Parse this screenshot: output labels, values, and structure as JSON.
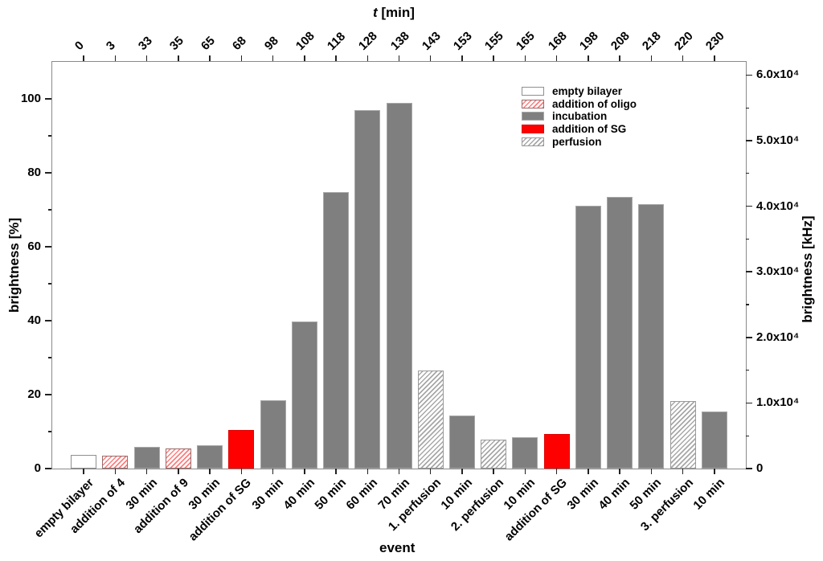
{
  "figure": {
    "top_axis_title": {
      "italic": "t",
      "rest": " [min]"
    },
    "bottom_axis_title": "event",
    "left_axis_title": "brightness [%]",
    "right_axis_title": "brightness [kHz]"
  },
  "legend": {
    "items": [
      {
        "label": "empty bilayer",
        "type": "empty"
      },
      {
        "label": "addition of oligo",
        "type": "oligo"
      },
      {
        "label": "incubation",
        "type": "incubation"
      },
      {
        "label": "addition of SG",
        "type": "sg"
      },
      {
        "label": "perfusion",
        "type": "perfusion"
      }
    ]
  },
  "chart_data": {
    "type": "bar",
    "title": "",
    "xlabel": "event",
    "ylabel_left": "brightness [%]",
    "ylabel_right": "brightness [kHz]",
    "xlabel_top": "t [min]",
    "categories": [
      "empty bilayer",
      "addition of 4",
      "30 min",
      "addition of 9",
      "30 min",
      "addition of SG",
      "30 min",
      "40 min",
      "50 min",
      "60 min",
      "70 min",
      "1. perfusion",
      "10 min",
      "2. perfusion",
      "10 min",
      "addition of SG",
      "30 min",
      "40 min",
      "50 min",
      "3. perfusion",
      "10 min"
    ],
    "t_min": [
      0,
      3,
      33,
      35,
      65,
      68,
      98,
      108,
      118,
      128,
      138,
      143,
      153,
      155,
      165,
      168,
      198,
      208,
      218,
      220,
      230
    ],
    "values_percent": [
      3.7,
      3.4,
      5.8,
      5.4,
      6.2,
      10.4,
      18.4,
      39.7,
      74.8,
      97.0,
      99.0,
      26.6,
      14.3,
      7.8,
      8.5,
      9.4,
      71.1,
      73.5,
      71.5,
      18.3,
      15.5
    ],
    "values_khz_approx": [
      2100,
      1900,
      3300,
      3000,
      3500,
      5900,
      10400,
      22400,
      42200,
      54700,
      55800,
      15000,
      8100,
      4400,
      4800,
      5300,
      40100,
      41400,
      40300,
      10300,
      8700
    ],
    "bar_types": [
      "empty",
      "oligo",
      "incubation",
      "oligo",
      "incubation",
      "sg",
      "incubation",
      "incubation",
      "incubation",
      "incubation",
      "incubation",
      "perfusion",
      "incubation",
      "perfusion",
      "incubation",
      "sg",
      "incubation",
      "incubation",
      "incubation",
      "perfusion",
      "incubation"
    ],
    "axes": {
      "left": {
        "majors": [
          0,
          20,
          40,
          60,
          80,
          100
        ],
        "minors": [
          10,
          30,
          50,
          70,
          90
        ],
        "max": 110
      },
      "right": {
        "majors_khz": [
          0,
          10000,
          20000,
          30000,
          40000,
          50000,
          60000
        ],
        "labels": [
          "0",
          "1.0x10⁴",
          "2.0x10⁴",
          "3.0x10⁴",
          "4.0x10⁴",
          "5.0x10⁴",
          "6.0x10⁴"
        ],
        "minors_khz": [
          5000,
          15000,
          25000,
          35000,
          45000,
          55000
        ],
        "max_khz": 62000
      },
      "grid": false,
      "legend_position": "upper-right-inside"
    },
    "colors": {
      "incubation": "#7f7f7f",
      "sg": "#ff0000",
      "hatch_red": "#ff4646",
      "hatch_gray": "#5f5f5f",
      "axis_line": "#8a8a8a",
      "tick": "#222222"
    }
  }
}
